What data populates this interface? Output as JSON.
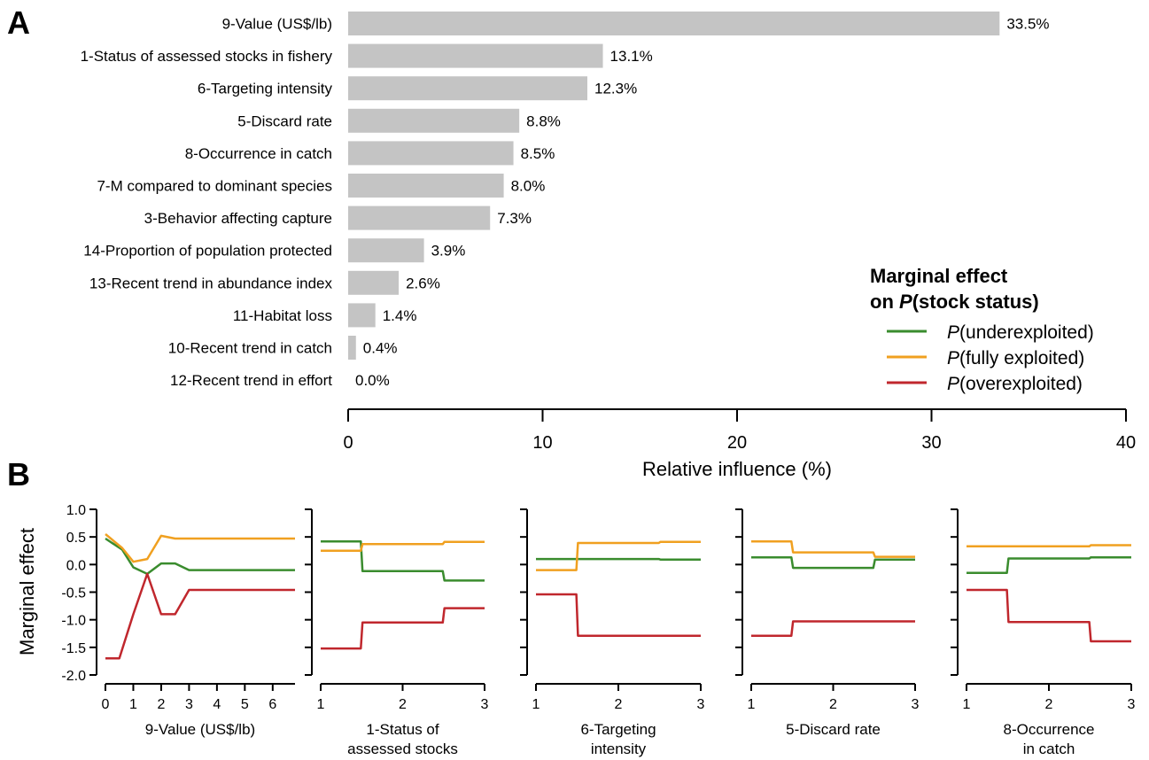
{
  "panels": {
    "a_letter": "A",
    "b_letter": "B"
  },
  "legend": {
    "title_line1": "Marginal effect",
    "title_line2_prefix": "on ",
    "title_line2_italic": "P",
    "title_line2_suffix": "(stock status)",
    "items": [
      {
        "italic": "P",
        "text": "(underexploited)",
        "color": "#3a8c2e"
      },
      {
        "italic": "P",
        "text": "(fully exploited)",
        "color": "#f0a020"
      },
      {
        "italic": "P",
        "text": "(overexploited)",
        "color": "#c0272d"
      }
    ]
  },
  "chart_data": [
    {
      "type": "bar",
      "orientation": "horizontal",
      "categories": [
        "9-Value (US$/lb)",
        "1-Status of assessed stocks in fishery",
        "6-Targeting intensity",
        "5-Discard rate",
        "8-Occurrence in catch",
        "7-M compared to dominant species",
        "3-Behavior affecting capture",
        "14-Proportion of population protected",
        "13-Recent trend in abundance index",
        "11-Habitat loss",
        "10-Recent trend in catch",
        "12-Recent trend in effort"
      ],
      "values": [
        33.5,
        13.1,
        12.3,
        8.8,
        8.5,
        8.0,
        7.3,
        3.9,
        2.6,
        1.4,
        0.4,
        0.0
      ],
      "value_labels": [
        "33.5%",
        "13.1%",
        "12.3%",
        "8.8%",
        "8.5%",
        "8.0%",
        "7.3%",
        "3.9%",
        "2.6%",
        "1.4%",
        "0.4%",
        "0.0%"
      ],
      "xlabel": "Relative influence (%)",
      "xlim": [
        0,
        40
      ],
      "xticks": [
        "0",
        "10",
        "20",
        "30",
        "40"
      ],
      "bar_color": "#c4c4c4"
    },
    {
      "type": "line",
      "xlabel_lines": [
        "9-Value (US$/lb)"
      ],
      "ylabel": "Marginal effect",
      "xlim": [
        0,
        6.8
      ],
      "ylim": [
        -2.0,
        1.0
      ],
      "xticks": [
        "0",
        "1",
        "2",
        "3",
        "4",
        "5",
        "6"
      ],
      "yticks": [
        "1.0",
        "0.5",
        "0.0",
        "-0.5",
        "-1.0",
        "-1.5",
        "-2.0"
      ],
      "series": [
        {
          "color": "#3a8c2e",
          "x": [
            0.0,
            0.6,
            1.0,
            1.5,
            2.0,
            2.5,
            3.0,
            4.0,
            5.0,
            6.8
          ],
          "y": [
            0.47,
            0.27,
            -0.05,
            -0.17,
            0.02,
            0.02,
            -0.1,
            -0.1,
            -0.1,
            -0.1
          ]
        },
        {
          "color": "#f0a020",
          "x": [
            0.0,
            0.6,
            1.0,
            1.5,
            2.0,
            2.5,
            3.0,
            4.0,
            5.0,
            6.8
          ],
          "y": [
            0.55,
            0.3,
            0.05,
            0.1,
            0.52,
            0.47,
            0.47,
            0.47,
            0.47,
            0.47
          ]
        },
        {
          "color": "#c0272d",
          "x": [
            0.0,
            0.5,
            1.0,
            1.5,
            2.0,
            2.5,
            3.0,
            4.0,
            5.0,
            6.8
          ],
          "y": [
            -1.7,
            -1.7,
            -0.9,
            -0.17,
            -0.9,
            -0.9,
            -0.46,
            -0.46,
            -0.46,
            -0.46
          ]
        }
      ]
    },
    {
      "type": "line",
      "xlabel_lines": [
        "1-Status of",
        "assessed stocks"
      ],
      "xlim": [
        1,
        3
      ],
      "ylim": [
        -2.0,
        1.0
      ],
      "xticks": [
        "1",
        "2",
        "3"
      ],
      "series": [
        {
          "color": "#3a8c2e",
          "x": [
            1,
            1.49,
            1.51,
            2.49,
            2.51,
            3
          ],
          "y": [
            0.42,
            0.42,
            -0.12,
            -0.12,
            -0.29,
            -0.29
          ]
        },
        {
          "color": "#f0a020",
          "x": [
            1,
            1.49,
            1.51,
            2.49,
            2.51,
            3
          ],
          "y": [
            0.25,
            0.25,
            0.37,
            0.37,
            0.41,
            0.41
          ]
        },
        {
          "color": "#c0272d",
          "x": [
            1,
            1.49,
            1.51,
            2.49,
            2.51,
            3
          ],
          "y": [
            -1.52,
            -1.52,
            -1.05,
            -1.05,
            -0.79,
            -0.79
          ]
        }
      ]
    },
    {
      "type": "line",
      "xlabel_lines": [
        "6-Targeting",
        "intensity"
      ],
      "xlim": [
        1,
        3
      ],
      "ylim": [
        -2.0,
        1.0
      ],
      "xticks": [
        "1",
        "2",
        "3"
      ],
      "series": [
        {
          "color": "#3a8c2e",
          "x": [
            1,
            1.49,
            1.51,
            2.49,
            2.51,
            3
          ],
          "y": [
            0.1,
            0.1,
            0.1,
            0.1,
            0.09,
            0.09
          ]
        },
        {
          "color": "#f0a020",
          "x": [
            1,
            1.49,
            1.51,
            2.49,
            2.51,
            3
          ],
          "y": [
            -0.1,
            -0.1,
            0.39,
            0.39,
            0.41,
            0.41
          ]
        },
        {
          "color": "#c0272d",
          "x": [
            1,
            1.49,
            1.51,
            2.49,
            2.51,
            3
          ],
          "y": [
            -0.54,
            -0.54,
            -1.29,
            -1.29,
            -1.29,
            -1.29
          ]
        }
      ]
    },
    {
      "type": "line",
      "xlabel_lines": [
        "5-Discard rate"
      ],
      "xlim": [
        1,
        3
      ],
      "ylim": [
        -2.0,
        1.0
      ],
      "xticks": [
        "1",
        "2",
        "3"
      ],
      "series": [
        {
          "color": "#3a8c2e",
          "x": [
            1,
            1.49,
            1.51,
            2.49,
            2.51,
            3
          ],
          "y": [
            0.13,
            0.13,
            -0.06,
            -0.06,
            0.09,
            0.09
          ]
        },
        {
          "color": "#f0a020",
          "x": [
            1,
            1.49,
            1.51,
            2.49,
            2.51,
            3
          ],
          "y": [
            0.42,
            0.42,
            0.22,
            0.22,
            0.14,
            0.14
          ]
        },
        {
          "color": "#c0272d",
          "x": [
            1,
            1.49,
            1.51,
            2.49,
            2.51,
            3
          ],
          "y": [
            -1.29,
            -1.29,
            -1.03,
            -1.03,
            -1.03,
            -1.03
          ]
        }
      ]
    },
    {
      "type": "line",
      "xlabel_lines": [
        "8-Occurrence",
        "in catch"
      ],
      "xlim": [
        1,
        3
      ],
      "ylim": [
        -2.0,
        1.0
      ],
      "xticks": [
        "1",
        "2",
        "3"
      ],
      "series": [
        {
          "color": "#3a8c2e",
          "x": [
            1,
            1.49,
            1.51,
            2.49,
            2.51,
            3
          ],
          "y": [
            -0.15,
            -0.15,
            0.11,
            0.11,
            0.13,
            0.13
          ]
        },
        {
          "color": "#f0a020",
          "x": [
            1,
            1.49,
            1.51,
            2.49,
            2.51,
            3
          ],
          "y": [
            0.33,
            0.33,
            0.33,
            0.33,
            0.35,
            0.35
          ]
        },
        {
          "color": "#c0272d",
          "x": [
            1,
            1.49,
            1.51,
            2.49,
            2.51,
            3
          ],
          "y": [
            -0.46,
            -0.46,
            -1.04,
            -1.04,
            -1.39,
            -1.39
          ]
        }
      ]
    }
  ]
}
